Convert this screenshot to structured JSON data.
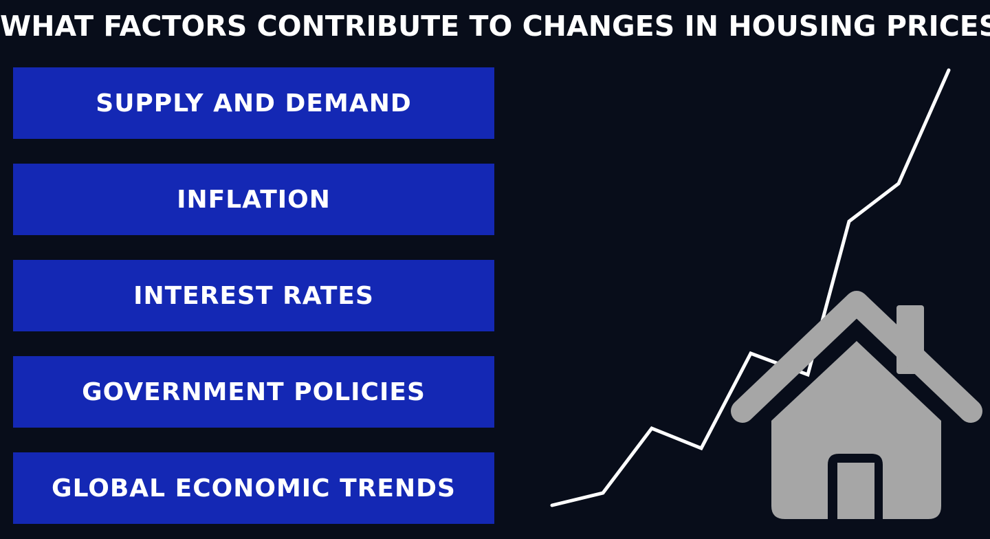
{
  "title": "WHAT FACTORS CONTRIBUTE TO CHANGES IN HOUSING PRICES?",
  "factors": [
    "SUPPLY AND DEMAND",
    "INFLATION",
    "INTEREST RATES",
    "GOVERNMENT POLICIES",
    "GLOBAL ECONOMIC TRENDS"
  ],
  "icons": {
    "trend": "rising-trend-line-icon",
    "house": "house-icon"
  },
  "colors": {
    "background": "#080d1a",
    "box": "#1428b4",
    "text": "#ffffff",
    "house": "#a6a6a6"
  }
}
